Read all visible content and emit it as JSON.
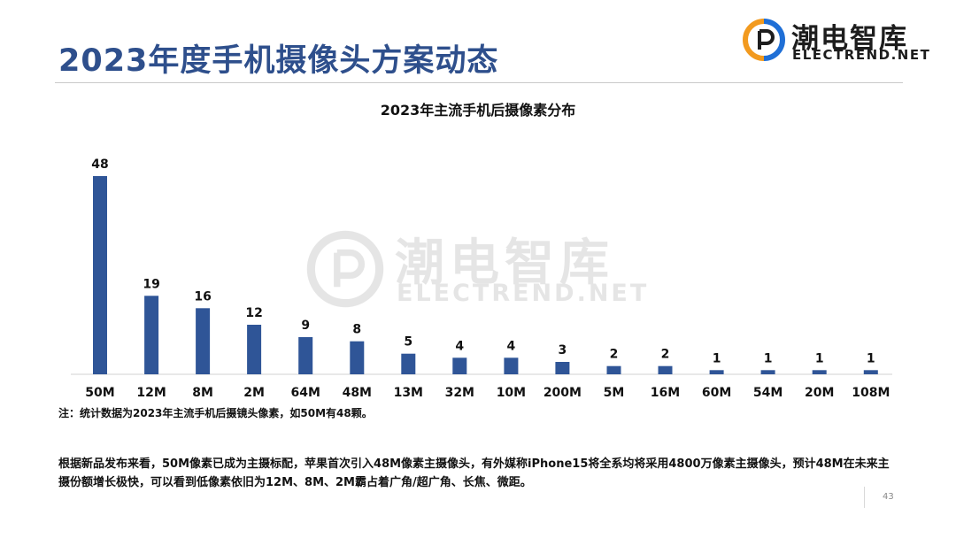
{
  "slide": {
    "title": "2023年度手机摄像头方案动态",
    "page_number": "43",
    "note": "注：统计数据为2023年主流手机后摄镜头像素，如50M有48颗。",
    "body": "根据新品发布来看，50M像素已成为主摄标配，苹果首次引入48M像素主摄像头，有外媒称iPhone15将全系均将采用4800万像素主摄像头，预计48M在未来主摄份额增长极快，可以看到低像素依旧为12M、8M、2M霸占着广角/超广角、长焦、微距。"
  },
  "logo": {
    "cn": "潮电智库",
    "en": "ELECTREND.NET",
    "colors": {
      "blue": "#1f6fd6",
      "orange": "#f29a1f",
      "dark": "#1d1d1d"
    }
  },
  "watermark": {
    "cn": "潮电智库",
    "en": "ELECTREND.NET"
  },
  "chart_data": {
    "type": "bar",
    "title": "2023年主流手机后摄像素分布",
    "categories": [
      "50M",
      "12M",
      "8M",
      "2M",
      "64M",
      "48M",
      "13M",
      "32M",
      "10M",
      "200M",
      "5M",
      "16M",
      "60M",
      "54M",
      "20M",
      "108M"
    ],
    "values": [
      48,
      19,
      16,
      12,
      9,
      8,
      5,
      4,
      4,
      3,
      2,
      2,
      1,
      1,
      1,
      1
    ],
    "xlabel": "",
    "ylabel": "",
    "ylim": [
      0,
      50
    ],
    "grid": false,
    "data_labels": true,
    "bar_color": "#2f5597"
  }
}
